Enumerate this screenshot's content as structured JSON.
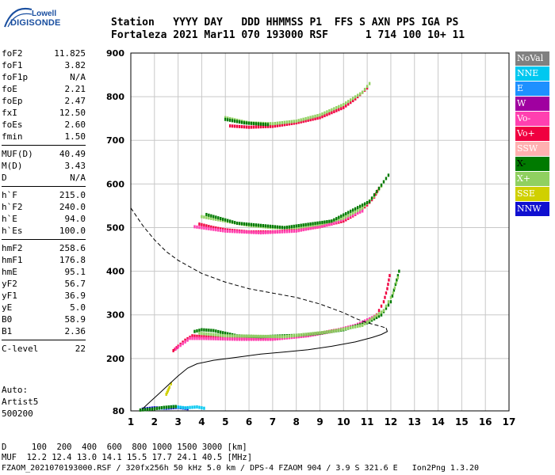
{
  "logo": {
    "top": "Lowell",
    "main": "DIGISONDE"
  },
  "header": {
    "line1": "Station   YYYY DAY   DDD HHMMSS P1  FFS S AXN PPS IGA PS",
    "line2": "Fortaleza 2021 Mar11 070 193000 RSF      1 714 100 10+ 11"
  },
  "params_groups": [
    [
      {
        "k": "foF2",
        "v": "11.825"
      },
      {
        "k": "foF1",
        "v": "3.82"
      },
      {
        "k": "foF1p",
        "v": "N/A"
      },
      {
        "k": "foE",
        "v": "2.21"
      },
      {
        "k": "foEp",
        "v": "2.47"
      },
      {
        "k": "fxI",
        "v": "12.50"
      },
      {
        "k": "foEs",
        "v": "2.60"
      },
      {
        "k": "fmin",
        "v": "1.50"
      }
    ],
    [
      {
        "k": "MUF(D)",
        "v": "40.49"
      },
      {
        "k": "M(D)",
        "v": "3.43"
      },
      {
        "k": "D",
        "v": "N/A"
      }
    ],
    [
      {
        "k": "h`F",
        "v": "215.0"
      },
      {
        "k": "h`F2",
        "v": "240.0"
      },
      {
        "k": "h`E",
        "v": "94.0"
      },
      {
        "k": "h`Es",
        "v": "100.0"
      }
    ],
    [
      {
        "k": "hmF2",
        "v": "258.6"
      },
      {
        "k": "hmF1",
        "v": "176.8"
      },
      {
        "k": "hmE",
        "v": "95.1"
      },
      {
        "k": "yF2",
        "v": "56.7"
      },
      {
        "k": "yF1",
        "v": "36.9"
      },
      {
        "k": "yE",
        "v": "5.0"
      },
      {
        "k": "B0",
        "v": "58.9"
      },
      {
        "k": "B1",
        "v": "2.36"
      }
    ],
    [
      {
        "k": "C-level",
        "v": "22"
      }
    ]
  ],
  "auto_lines": [
    "Auto:",
    "Artist5",
    "500200"
  ],
  "legend": [
    {
      "label": "NoVal",
      "color": "#808080",
      "text": "#ffffff"
    },
    {
      "label": "NNE",
      "color": "#00c8f0",
      "text": "#ffffff"
    },
    {
      "label": "E",
      "color": "#1e90ff",
      "text": "#ffffff"
    },
    {
      "label": "W",
      "color": "#a000a0",
      "text": "#ffffff"
    },
    {
      "label": "Vo-",
      "color": "#ff40b0",
      "text": "#ffffff"
    },
    {
      "label": "Vo+",
      "color": "#f00040",
      "text": "#ffffff"
    },
    {
      "label": "SSW",
      "color": "#ffb0b0",
      "text": "#ffffff"
    },
    {
      "label": "X-",
      "color": "#007a00",
      "text": "#000000"
    },
    {
      "label": "X+",
      "color": "#90d060",
      "text": "#ffffff"
    },
    {
      "label": "SSE",
      "color": "#d0d000",
      "text": "#ffffff"
    },
    {
      "label": "NNW",
      "color": "#1010d0",
      "text": "#ffffff"
    }
  ],
  "footer": {
    "line1": "D     100  200  400  600  800 1000 1500 3000 [km]",
    "line2": "MUF  12.2 12.4 13.0 14.1 15.5 17.7 24.1 40.5 [MHz]",
    "line3": "FZAOM_2021070193000.RSF / 320fx256h 50 kHz 5.0 km / DPS-4 FZAOM 904 / 3.9 S 321.6 E   Ion2Png 1.3.20"
  },
  "chart_data": {
    "type": "scatter",
    "xlim": [
      1,
      17
    ],
    "ylim": [
      80,
      900
    ],
    "x_ticks": [
      "1",
      "2",
      "3",
      "4",
      "5",
      "6",
      "7",
      "8",
      "9",
      "10",
      "11",
      "12",
      "13",
      "14",
      "15",
      "16",
      "17"
    ],
    "y_ticks": [
      {
        "v": 80,
        "label": "80"
      },
      {
        "v": 200,
        "label": "200"
      },
      {
        "v": 300,
        "label": "300"
      },
      {
        "v": 400,
        "label": "400"
      },
      {
        "v": 500,
        "label": "500"
      },
      {
        "v": 600,
        "label": "600"
      },
      {
        "v": 700,
        "label": "700"
      },
      {
        "v": 800,
        "label": "800"
      },
      {
        "v": 900,
        "label": "900"
      }
    ],
    "grid": true,
    "traces": [
      {
        "mode": "Vo+",
        "color": "#f00040",
        "points": [
          [
            2.8,
            218
          ],
          [
            3.0,
            228
          ],
          [
            3.3,
            242
          ],
          [
            3.6,
            252
          ],
          [
            4.0,
            250
          ],
          [
            5.0,
            247
          ],
          [
            6.0,
            246
          ],
          [
            7.0,
            246
          ],
          [
            8.0,
            250
          ],
          [
            9.0,
            258
          ],
          [
            10.0,
            268
          ],
          [
            10.5,
            275
          ],
          [
            11.0,
            285
          ],
          [
            11.4,
            300
          ],
          [
            11.7,
            330
          ],
          [
            11.85,
            360
          ],
          [
            11.95,
            390
          ]
        ]
      },
      {
        "mode": "Vo-",
        "color": "#ff40b0",
        "points": [
          [
            2.9,
            222
          ],
          [
            3.2,
            234
          ],
          [
            3.5,
            246
          ],
          [
            4.0,
            246
          ],
          [
            5.5,
            244
          ],
          [
            7.0,
            244
          ],
          [
            8.5,
            252
          ],
          [
            9.5,
            262
          ],
          [
            10.5,
            276
          ],
          [
            11.3,
            296
          ]
        ]
      },
      {
        "mode": "X-",
        "color": "#007a00",
        "points": [
          [
            3.7,
            262
          ],
          [
            4.0,
            266
          ],
          [
            4.5,
            264
          ],
          [
            5.5,
            252
          ],
          [
            6.5,
            250
          ],
          [
            8.0,
            253
          ],
          [
            9.0,
            258
          ],
          [
            10.0,
            266
          ],
          [
            11.0,
            282
          ],
          [
            11.6,
            300
          ],
          [
            12.0,
            330
          ],
          [
            12.2,
            370
          ],
          [
            12.35,
            400
          ]
        ]
      },
      {
        "mode": "X+",
        "color": "#90d060",
        "points": [
          [
            3.9,
            258
          ],
          [
            5.0,
            252
          ],
          [
            7.5,
            250
          ],
          [
            9.5,
            262
          ],
          [
            10.8,
            276
          ],
          [
            11.7,
            310
          ],
          [
            12.1,
            350
          ],
          [
            12.3,
            385
          ]
        ]
      },
      {
        "mode": "Vo+",
        "color": "#f00040",
        "points": [
          [
            3.9,
            508
          ],
          [
            4.5,
            500
          ],
          [
            5.0,
            495
          ],
          [
            6.0,
            490
          ],
          [
            7.0,
            490
          ],
          [
            8.0,
            494
          ],
          [
            9.0,
            502
          ],
          [
            10.0,
            515
          ],
          [
            10.5,
            530
          ],
          [
            11.0,
            552
          ],
          [
            11.3,
            570
          ],
          [
            11.5,
            590
          ]
        ]
      },
      {
        "mode": "Vo-",
        "color": "#ff40b0",
        "points": [
          [
            3.7,
            502
          ],
          [
            5.0,
            492
          ],
          [
            6.5,
            488
          ],
          [
            8.0,
            492
          ],
          [
            9.5,
            508
          ],
          [
            10.8,
            538
          ]
        ]
      },
      {
        "mode": "X+",
        "color": "#90d060",
        "points": [
          [
            4.0,
            525
          ],
          [
            5.0,
            515
          ],
          [
            6.0,
            505
          ],
          [
            7.0,
            500
          ],
          [
            8.0,
            500
          ],
          [
            9.0,
            508
          ],
          [
            10.0,
            522
          ],
          [
            10.8,
            545
          ],
          [
            11.3,
            572
          ],
          [
            11.6,
            595
          ]
        ]
      },
      {
        "mode": "X-",
        "color": "#007a00",
        "points": [
          [
            4.2,
            530
          ],
          [
            5.5,
            510
          ],
          [
            7.5,
            500
          ],
          [
            9.5,
            515
          ],
          [
            11.1,
            560
          ],
          [
            11.9,
            620
          ]
        ]
      },
      {
        "mode": "Vo+",
        "color": "#f00040",
        "points": [
          [
            5.2,
            733
          ],
          [
            6.0,
            730
          ],
          [
            7.0,
            732
          ],
          [
            8.0,
            740
          ],
          [
            9.0,
            752
          ],
          [
            10.0,
            775
          ],
          [
            10.5,
            795
          ],
          [
            11.0,
            820
          ]
        ]
      },
      {
        "mode": "X+",
        "color": "#90d060",
        "points": [
          [
            5.0,
            752
          ],
          [
            6.0,
            740
          ],
          [
            7.0,
            738
          ],
          [
            8.0,
            744
          ],
          [
            9.0,
            758
          ],
          [
            10.0,
            782
          ],
          [
            10.8,
            810
          ],
          [
            11.1,
            830
          ]
        ]
      },
      {
        "mode": "X-",
        "color": "#007a00",
        "points": [
          [
            5.0,
            748
          ],
          [
            5.8,
            740
          ],
          [
            6.8,
            736
          ]
        ]
      },
      {
        "mode": "NNW",
        "color": "#1010d0",
        "points": [
          [
            1.5,
            84
          ],
          [
            2.0,
            87
          ],
          [
            2.5,
            86
          ],
          [
            3.0,
            88
          ],
          [
            3.4,
            85
          ]
        ]
      },
      {
        "mode": "NNE",
        "color": "#00c8f0",
        "points": [
          [
            2.2,
            86
          ],
          [
            2.8,
            90
          ],
          [
            3.3,
            87
          ],
          [
            3.8,
            89
          ],
          [
            4.1,
            86
          ]
        ]
      },
      {
        "mode": "X-",
        "color": "#007a00",
        "points": [
          [
            1.4,
            82
          ],
          [
            1.9,
            84
          ],
          [
            2.4,
            88
          ],
          [
            2.9,
            90
          ]
        ]
      },
      {
        "mode": "SSE",
        "color": "#d0d000",
        "points": [
          [
            2.6,
            130
          ],
          [
            2.5,
            118
          ],
          [
            2.7,
            142
          ]
        ]
      }
    ],
    "profile_line": {
      "style": "solid",
      "color": "#000000",
      "points": [
        [
          1.5,
          85
        ],
        [
          1.8,
          100
        ],
        [
          2.2,
          120
        ],
        [
          2.6,
          140
        ],
        [
          3.0,
          160
        ],
        [
          3.4,
          178
        ],
        [
          3.8,
          188
        ],
        [
          4.5,
          196
        ],
        [
          5.5,
          203
        ],
        [
          6.5,
          210
        ],
        [
          7.5,
          215
        ],
        [
          8.5,
          220
        ],
        [
          9.5,
          228
        ],
        [
          10.5,
          238
        ],
        [
          11.2,
          248
        ],
        [
          11.6,
          255
        ],
        [
          11.85,
          262
        ],
        [
          11.8,
          270
        ]
      ]
    },
    "muf_line": {
      "style": "dashed",
      "color": "#000000",
      "points": [
        [
          1.0,
          545
        ],
        [
          1.5,
          505
        ],
        [
          2.0,
          472
        ],
        [
          2.5,
          445
        ],
        [
          3.0,
          425
        ],
        [
          3.5,
          410
        ],
        [
          4.0,
          395
        ],
        [
          5.0,
          375
        ],
        [
          6.0,
          360
        ],
        [
          7.0,
          350
        ],
        [
          8.0,
          340
        ],
        [
          9.0,
          325
        ],
        [
          10.0,
          305
        ],
        [
          10.5,
          292
        ],
        [
          11.0,
          282
        ],
        [
          11.5,
          275
        ],
        [
          11.8,
          270
        ]
      ]
    }
  }
}
